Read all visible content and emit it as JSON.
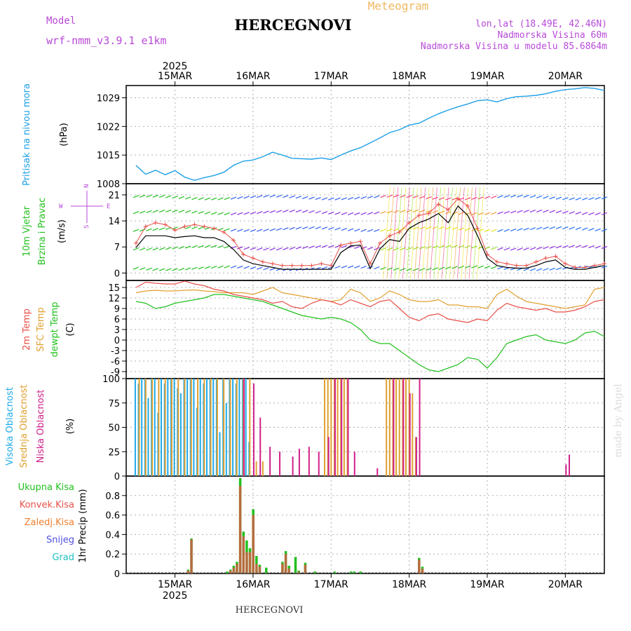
{
  "header": {
    "model_label": "Model",
    "model_name": "wrf-nmm_v3.9.1 e1km",
    "title": "HERCEGNOVI",
    "meteogram": "Meteogram",
    "lonlat": "lon,lat (18.49E, 42.46N)",
    "elevation": "Nadmorska Visina 60m",
    "model_elevation": "Nadmorska Visina u modelu 85.6864m"
  },
  "footer": {
    "station": "HERCEGNOVI",
    "watermark": "made by Angel"
  },
  "colors": {
    "pressure": "#1ea0e6",
    "temp2m": "#e8504a",
    "sfc": "#e0a030",
    "dewpt": "#22c01e",
    "high": "#1eaae8",
    "mid": "#e0a030",
    "low": "#d0208a",
    "precip_total": "#22c01e",
    "precip_conv": "#e8504a",
    "label_purple": "#b84ad8"
  },
  "chart_data": [
    {
      "type": "line",
      "panel": "pressure",
      "ylabel": "Pritisak na nivou mora",
      "unit": "(hPa)",
      "yticks": [
        "1008",
        "1015",
        "1022",
        "1029"
      ],
      "ylim": [
        1008,
        1032
      ],
      "xticks_top": [
        "15MAR",
        "16MAR",
        "17MAR",
        "18MAR",
        "19MAR",
        "20MAR"
      ],
      "year_top": "2025",
      "x": [
        0,
        3,
        6,
        9,
        12,
        15,
        18,
        21,
        24,
        27,
        30,
        33,
        36,
        39,
        42,
        45,
        48,
        51,
        54,
        57,
        60,
        63,
        66,
        69,
        72,
        75,
        78,
        81,
        84,
        87,
        90,
        93,
        96,
        99,
        102,
        105,
        108,
        111,
        114,
        117,
        120,
        123,
        126,
        129,
        132,
        135,
        138,
        141,
        144
      ],
      "series": [
        {
          "values": [
            1012.5,
            1010.3,
            1011.3,
            1010.2,
            1011.2,
            1009.6,
            1008.8,
            1009.5,
            1010.0,
            1010.8,
            1012.5,
            1013.5,
            1013.8,
            1014.6,
            1015.7,
            1015.0,
            1014.2,
            1014.1,
            1014.0,
            1014.3,
            1013.9,
            1015.0,
            1016.0,
            1016.8,
            1018.0,
            1019.2,
            1020.5,
            1021.2,
            1022.3,
            1022.8,
            1024.0,
            1025.1,
            1026.0,
            1026.8,
            1027.5,
            1028.3,
            1028.5,
            1028.0,
            1028.8,
            1029.3,
            1029.4,
            1029.6,
            1030.0,
            1030.6,
            1031.0,
            1031.2,
            1031.5,
            1031.3,
            1030.8
          ]
        }
      ]
    },
    {
      "type": "line",
      "panel": "wind",
      "ylabel": "10m Vjetar",
      "ylabel2": "Brzina i Pravac",
      "unit": "(m/s)",
      "compass": {
        "n": "N",
        "s": "S",
        "w": "W",
        "e": "E"
      },
      "yticks": [
        "0",
        "7",
        "14",
        "21"
      ],
      "ylim": [
        -2,
        24
      ],
      "x": [
        0,
        3,
        6,
        9,
        12,
        15,
        18,
        21,
        24,
        27,
        30,
        33,
        36,
        39,
        42,
        45,
        48,
        51,
        54,
        57,
        60,
        63,
        66,
        69,
        72,
        75,
        78,
        81,
        84,
        87,
        90,
        93,
        96,
        99,
        102,
        105,
        108,
        111,
        114,
        117,
        120,
        123,
        126,
        129,
        132,
        135,
        138,
        141,
        144
      ],
      "series": [
        {
          "name": "speed",
          "values": [
            6.8,
            10.0,
            10.0,
            10.0,
            9.5,
            9.8,
            10.0,
            9.5,
            9.5,
            8.5,
            6.3,
            3.5,
            2.5,
            2.0,
            1.5,
            1.0,
            1.0,
            1.0,
            1.0,
            1.0,
            1.0,
            5.5,
            7.3,
            7.5,
            1.2,
            6.5,
            9.0,
            8.5,
            12.0,
            13.5,
            14.5,
            16.0,
            13.5,
            18.0,
            15.5,
            10.0,
            4.0,
            2.0,
            1.5,
            1.3,
            1.3,
            2.0,
            3.0,
            3.5,
            1.5,
            1.0,
            1.0,
            1.5,
            2.0
          ]
        },
        {
          "name": "gust",
          "values": [
            8.0,
            12.5,
            13.5,
            13.0,
            11.5,
            12.5,
            13.0,
            12.5,
            12.0,
            11.0,
            8.8,
            5.0,
            4.0,
            3.0,
            2.5,
            2.0,
            2.0,
            2.0,
            2.0,
            2.5,
            2.0,
            7.5,
            8.0,
            8.5,
            2.5,
            8.0,
            10.0,
            11.0,
            13.5,
            15.5,
            16.0,
            18.5,
            17.0,
            20.0,
            18.0,
            12.0,
            5.0,
            3.0,
            2.5,
            2.0,
            2.0,
            3.0,
            4.0,
            4.5,
            2.5,
            1.5,
            1.5,
            2.0,
            2.5
          ]
        }
      ]
    },
    {
      "type": "line",
      "panel": "temperature",
      "ylabel": "2m Temp",
      "ylabel2": "SFC Temp",
      "ylabel3": "dewpt Temp",
      "unit": "(C)",
      "yticks": [
        "-9",
        "-6",
        "-3",
        "0",
        "3",
        "6",
        "9",
        "12",
        "15"
      ],
      "ylim": [
        -11,
        17
      ],
      "x": [
        0,
        3,
        6,
        9,
        12,
        15,
        18,
        21,
        24,
        27,
        30,
        33,
        36,
        39,
        42,
        45,
        48,
        51,
        54,
        57,
        60,
        63,
        66,
        69,
        72,
        75,
        78,
        81,
        84,
        87,
        90,
        93,
        96,
        99,
        102,
        105,
        108,
        111,
        114,
        117,
        120,
        123,
        126,
        129,
        132,
        135,
        138,
        141,
        144
      ],
      "series": [
        {
          "name": "2m Temp",
          "values": [
            15.0,
            16.5,
            16.2,
            16.0,
            16.0,
            16.8,
            16.0,
            15.5,
            14.5,
            14.0,
            13.0,
            12.5,
            12.0,
            11.5,
            10.5,
            11.0,
            9.5,
            9.0,
            10.5,
            11.5,
            11.0,
            10.0,
            11.5,
            10.5,
            9.5,
            11.0,
            11.5,
            9.0,
            6.5,
            5.5,
            7.0,
            7.5,
            6.0,
            5.5,
            5.0,
            6.0,
            5.5,
            8.5,
            10.5,
            9.5,
            9.0,
            8.5,
            9.0,
            8.0,
            8.0,
            8.5,
            9.5,
            11.0,
            11.5
          ]
        },
        {
          "name": "SFC Temp",
          "values": [
            13.5,
            14.0,
            14.2,
            14.0,
            14.0,
            14.2,
            14.3,
            14.0,
            13.8,
            13.5,
            13.5,
            13.5,
            13.0,
            14.0,
            15.0,
            13.5,
            13.0,
            12.5,
            12.0,
            11.5,
            11.0,
            11.5,
            14.5,
            13.5,
            11.0,
            12.0,
            14.0,
            13.0,
            11.5,
            11.0,
            11.0,
            11.5,
            10.0,
            10.0,
            9.5,
            9.5,
            9.0,
            13.0,
            14.5,
            12.5,
            11.0,
            10.5,
            10.0,
            9.5,
            9.0,
            9.5,
            10.0,
            14.5,
            15.0
          ]
        },
        {
          "name": "dewpt Temp",
          "values": [
            11.0,
            10.5,
            9.0,
            9.5,
            10.5,
            11.0,
            11.5,
            12.0,
            13.0,
            13.0,
            12.5,
            12.0,
            11.5,
            11.0,
            10.0,
            9.0,
            8.0,
            7.0,
            6.5,
            6.0,
            6.5,
            6.0,
            5.0,
            3.0,
            0.0,
            -1.0,
            -1.0,
            -3.0,
            -5.0,
            -7.0,
            -8.5,
            -9.0,
            -8.0,
            -7.0,
            -5.0,
            -5.5,
            -8.0,
            -5.0,
            -1.0,
            0.0,
            1.0,
            1.5,
            0.0,
            -0.5,
            -1.0,
            0.0,
            2.0,
            2.5,
            1.0
          ]
        }
      ]
    },
    {
      "type": "bar",
      "panel": "cloud",
      "ylabel": "Visoka Oblacnost",
      "ylabel2": "Srednja Oblacnost",
      "ylabel3": "Niska Oblacnost",
      "unit": "(%)",
      "yticks": [
        "0",
        "25",
        "50",
        "75",
        "100"
      ],
      "ylim": [
        0,
        100
      ],
      "series": [
        {
          "name": "high",
          "x": [
            0,
            1,
            2,
            3,
            4,
            5,
            6,
            7,
            8,
            9,
            10,
            11,
            12,
            13,
            14,
            15,
            16,
            17,
            18,
            19,
            20,
            21,
            22,
            23,
            24,
            25,
            26,
            27,
            28,
            29,
            30,
            31,
            32,
            33,
            34,
            35
          ],
          "values": [
            100,
            95,
            100,
            100,
            80,
            100,
            100,
            65,
            100,
            95,
            100,
            100,
            100,
            90,
            85,
            100,
            100,
            100,
            100,
            70,
            100,
            95,
            100,
            100,
            100,
            100,
            45,
            100,
            75,
            100,
            100,
            95,
            100,
            100,
            100,
            35
          ]
        },
        {
          "name": "mid",
          "x": [
            1,
            3,
            5,
            7,
            9,
            11,
            13,
            15,
            17,
            19,
            21,
            23,
            25,
            27,
            29,
            31,
            33,
            35,
            37,
            39,
            58,
            59,
            60,
            61,
            62,
            63,
            64,
            65,
            77,
            78,
            79,
            80,
            81,
            82,
            83,
            84,
            85,
            86
          ],
          "values": [
            100,
            100,
            100,
            100,
            100,
            100,
            100,
            100,
            100,
            100,
            100,
            100,
            100,
            100,
            100,
            100,
            100,
            100,
            15,
            15,
            100,
            100,
            100,
            100,
            100,
            100,
            100,
            100,
            100,
            100,
            100,
            100,
            100,
            100,
            100,
            100,
            85,
            40
          ]
        },
        {
          "name": "low",
          "x": [
            33,
            36,
            38,
            41,
            44,
            48,
            50,
            53,
            56,
            59,
            61,
            63,
            65,
            67,
            74,
            79,
            82,
            84,
            86,
            87,
            132,
            133
          ],
          "values": [
            100,
            95,
            60,
            30,
            25,
            20,
            28,
            30,
            25,
            40,
            100,
            100,
            100,
            25,
            8,
            100,
            100,
            85,
            40,
            100,
            12,
            22
          ]
        }
      ]
    },
    {
      "type": "bar",
      "panel": "precipitation",
      "ylabel": "1hr Precip (mm)",
      "legend": [
        "Ukupna Kisa",
        "Konvek.Kisa",
        "Zaledj.Kisa",
        "Snijeg",
        "Grad"
      ],
      "yticks": [
        "0",
        "0.2",
        "0.4",
        "0.6",
        "0.8"
      ],
      "ylim": [
        0,
        1.0
      ],
      "xticks_bottom": [
        "15MAR",
        "16MAR",
        "17MAR",
        "18MAR",
        "19MAR",
        "20MAR"
      ],
      "year_bottom": "2025",
      "series": [
        {
          "name": "Ukupna Kisa",
          "x": [
            16,
            17,
            28,
            29,
            30,
            31,
            32,
            33,
            34,
            35,
            36,
            37,
            38,
            40,
            45,
            46,
            47,
            49,
            50,
            52,
            55,
            61,
            66,
            67,
            69,
            87,
            88
          ],
          "values": [
            0.04,
            0.36,
            0.02,
            0.04,
            0.08,
            0.12,
            0.98,
            0.43,
            0.34,
            0.26,
            0.66,
            0.18,
            0.09,
            0.06,
            0.12,
            0.23,
            0.08,
            0.17,
            0.03,
            0.11,
            0.02,
            0.02,
            0.02,
            0.02,
            0.02,
            0.16,
            0.07
          ]
        },
        {
          "name": "Konvek.Kisa",
          "x": [
            16,
            17,
            29,
            30,
            31,
            32,
            33,
            34,
            35,
            36,
            37,
            38,
            45,
            46,
            47,
            50,
            52,
            87,
            88
          ],
          "values": [
            0.03,
            0.35,
            0.03,
            0.06,
            0.1,
            0.9,
            0.38,
            0.22,
            0.22,
            0.6,
            0.1,
            0.07,
            0.1,
            0.2,
            0.05,
            0.02,
            0.09,
            0.14,
            0.05
          ]
        }
      ]
    }
  ]
}
